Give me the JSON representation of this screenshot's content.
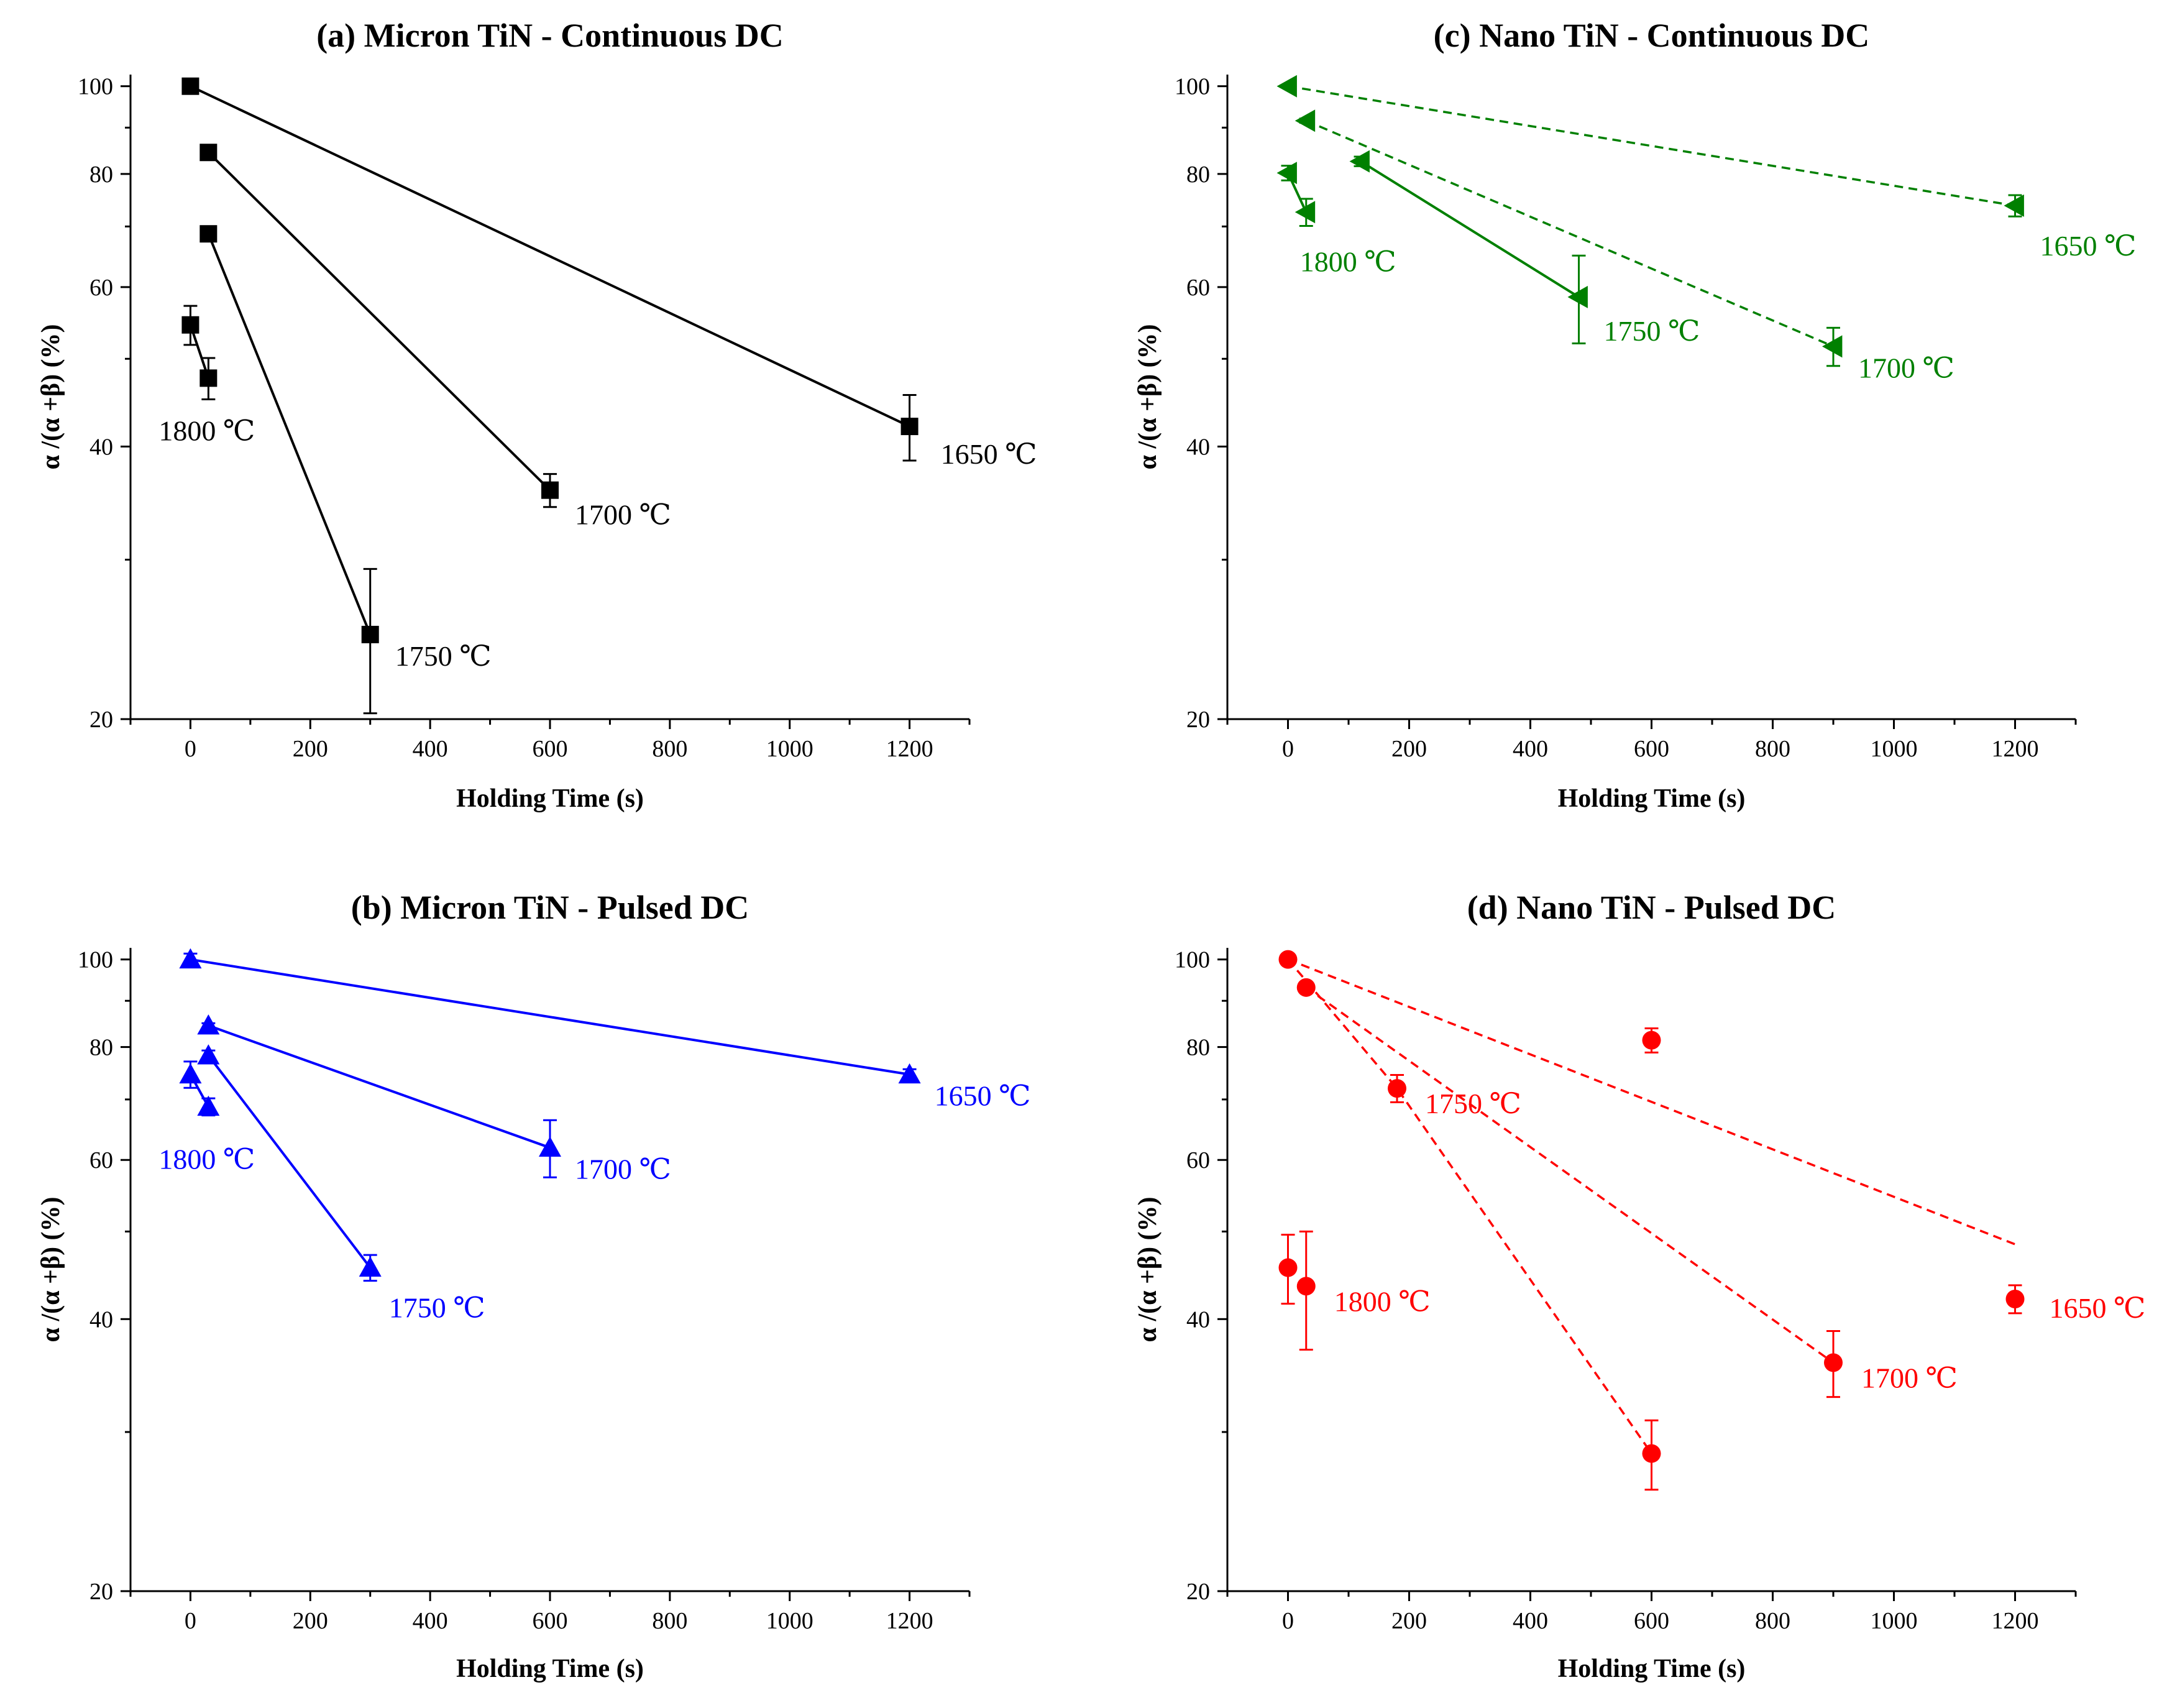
{
  "chart_data": [
    {
      "id": "a",
      "type": "scatter",
      "title": "(a) Micron TiN - Continuous DC",
      "xlabel": "Holding Time (s)",
      "ylabel": "α /(α +β) (%)",
      "xlim": [
        -100,
        1300
      ],
      "ylim": [
        20,
        103
      ],
      "yscale": "log",
      "xticks": [
        0,
        200,
        400,
        600,
        800,
        1000,
        1200
      ],
      "yticks": [
        20,
        40,
        60,
        80,
        100
      ],
      "color": "#000000",
      "marker": "square",
      "line_style": "solid",
      "series": [
        {
          "name": "1800 ℃",
          "label": "1800 ℃",
          "points": [
            {
              "x": 0,
              "y": 54.5,
              "err": 2.7
            },
            {
              "x": 30,
              "y": 47.6,
              "err": 2.5
            }
          ]
        },
        {
          "name": "1750 ℃",
          "label": "1750 ℃",
          "points": [
            {
              "x": 30,
              "y": 68.7,
              "err": 1.0
            },
            {
              "x": 300,
              "y": 24.8,
              "err": 4.5
            }
          ]
        },
        {
          "name": "1700 ℃",
          "label": "1700 ℃",
          "points": [
            {
              "x": 30,
              "y": 84.5,
              "err": 0.5
            },
            {
              "x": 600,
              "y": 35.8,
              "err": 1.5
            }
          ]
        },
        {
          "name": "1650 ℃",
          "label": "1650 ℃",
          "points": [
            {
              "x": 0,
              "y": 100,
              "err": 0
            },
            {
              "x": 1200,
              "y": 42.1,
              "err": 3.5
            }
          ]
        }
      ]
    },
    {
      "id": "c",
      "type": "scatter",
      "title": "(c) Nano TiN - Continuous DC",
      "xlabel": "Holding Time (s)",
      "ylabel": "α /(α +β) (%)",
      "xlim": [
        -100,
        1300
      ],
      "ylim": [
        20,
        103
      ],
      "yscale": "log",
      "xticks": [
        0,
        200,
        400,
        600,
        800,
        1000,
        1200
      ],
      "yticks": [
        20,
        40,
        60,
        80,
        100
      ],
      "color": "#008000",
      "marker": "triangle-left",
      "line_style": "mixed",
      "series": [
        {
          "name": "1800 ℃",
          "label": "1800 ℃",
          "style": "solid",
          "points": [
            {
              "x": 0,
              "y": 80.2,
              "err": 1.5
            },
            {
              "x": 30,
              "y": 72.6,
              "err": 2.5
            }
          ]
        },
        {
          "name": "1750 ℃",
          "label": "1750 ℃",
          "style": "solid",
          "points": [
            {
              "x": 120,
              "y": 82.6,
              "err": 1.0
            },
            {
              "x": 480,
              "y": 58.5,
              "err": 6.5
            }
          ]
        },
        {
          "name": "1700 ℃",
          "label": "1700 ℃",
          "style": "dashed",
          "points": [
            {
              "x": 30,
              "y": 91.6,
              "err": 0.5
            },
            {
              "x": 900,
              "y": 51.6,
              "err": 2.5
            }
          ]
        },
        {
          "name": "1650 ℃",
          "label": "1650 ℃",
          "style": "dashed",
          "points": [
            {
              "x": 0,
              "y": 100,
              "err": 0
            },
            {
              "x": 1200,
              "y": 73.8,
              "err": 2.0
            }
          ]
        }
      ]
    },
    {
      "id": "b",
      "type": "scatter",
      "title": "(b) Micron TiN - Pulsed DC",
      "xlabel": "Holding Time (s)",
      "ylabel": "α /(α +β) (%)",
      "xlim": [
        -100,
        1300
      ],
      "ylim": [
        20,
        103
      ],
      "yscale": "log",
      "xticks": [
        0,
        200,
        400,
        600,
        800,
        1000,
        1200
      ],
      "yticks": [
        20,
        40,
        60,
        80,
        100
      ],
      "color": "#0000ff",
      "marker": "triangle-up",
      "line_style": "solid",
      "series": [
        {
          "name": "1800 ℃",
          "label": "1800 ℃",
          "points": [
            {
              "x": 0,
              "y": 74.6,
              "err": 2.5
            },
            {
              "x": 30,
              "y": 68.7,
              "err": 1.5
            }
          ]
        },
        {
          "name": "1750 ℃",
          "label": "1750 ℃",
          "points": [
            {
              "x": 30,
              "y": 78.3,
              "err": 1.0
            },
            {
              "x": 300,
              "y": 45.6,
              "err": 1.5
            }
          ]
        },
        {
          "name": "1700 ℃",
          "label": "1700 ℃",
          "points": [
            {
              "x": 30,
              "y": 84.5,
              "err": 0.5
            },
            {
              "x": 600,
              "y": 61.9,
              "err": 4.5
            }
          ]
        },
        {
          "name": "1650 ℃",
          "label": "1650 ℃",
          "points": [
            {
              "x": 0,
              "y": 100,
              "err": 1.5
            },
            {
              "x": 1200,
              "y": 74.6,
              "err": 1.0
            }
          ]
        }
      ]
    },
    {
      "id": "d",
      "type": "scatter",
      "title": "(d) Nano TiN - Pulsed DC",
      "xlabel": "Holding Time (s)",
      "ylabel": "α /(α +β) (%)",
      "xlim": [
        -100,
        1300
      ],
      "ylim": [
        20,
        103
      ],
      "yscale": "log",
      "xticks": [
        0,
        200,
        400,
        600,
        800,
        1000,
        1200
      ],
      "yticks": [
        20,
        40,
        60,
        80,
        100
      ],
      "color": "#ff0000",
      "marker": "circle",
      "line_style": "dashed",
      "series": [
        {
          "name": "1800 ℃",
          "label": "1800 ℃",
          "style": "none",
          "points": [
            {
              "x": 0,
              "y": 45.6,
              "err": 4.0
            },
            {
              "x": 30,
              "y": 43.5,
              "err": 6.5
            }
          ]
        },
        {
          "name": "1750 ℃",
          "label": "1750 ℃",
          "style": "dashed",
          "points": [
            {
              "x": 0,
              "y": 100,
              "err": 0
            },
            {
              "x": 180,
              "y": 72.0,
              "err": 2.5
            },
            {
              "x": 600,
              "y": 28.4,
              "err": 2.5
            }
          ]
        },
        {
          "name": "1700 ℃",
          "label": "1700 ℃",
          "style": "dashed",
          "points": [
            {
              "x": 30,
              "y": 93.1,
              "err": 0.5
            },
            {
              "x": 900,
              "y": 35.8,
              "err": 3.0
            }
          ]
        },
        {
          "name": "1650 ℃",
          "label": "1650 ℃",
          "style": "none",
          "points": [
            {
              "x": 600,
              "y": 81.4,
              "err": 2.5
            },
            {
              "x": 1200,
              "y": 42.1,
              "err": 1.5
            }
          ]
        }
      ],
      "trend_line": {
        "style": "dashed",
        "points": [
          {
            "x": 0,
            "y": 100
          },
          {
            "x": 1200,
            "y": 48.4
          }
        ]
      }
    }
  ]
}
